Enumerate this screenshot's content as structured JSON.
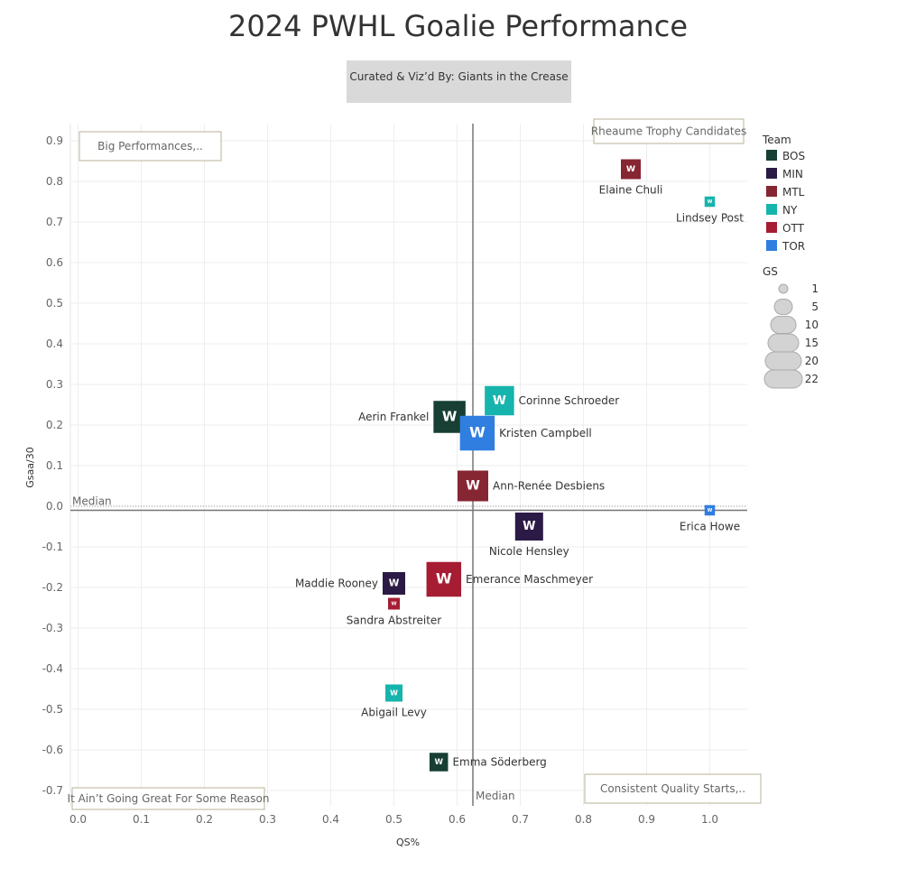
{
  "title": "2024 PWHL Goalie Performance",
  "credit": "Curated & Viz’d By: Giants in the Crease",
  "colors": {
    "BOS": "#173f33",
    "MIN": "#2b1a45",
    "MTL": "#862633",
    "NY": "#16b4ad",
    "OTT": "#a61d33",
    "TOR": "#2f7ee0"
  },
  "chart_data": {
    "type": "scatter",
    "xlabel": "QS%",
    "ylabel": "Gsaa/30",
    "xlim": [
      -0.01,
      1.06
    ],
    "ylim": [
      -0.74,
      0.94
    ],
    "x_ticks": [
      "0.0",
      "0.1",
      "0.2",
      "0.3",
      "0.4",
      "0.5",
      "0.6",
      "0.7",
      "0.8",
      "0.9",
      "1.0"
    ],
    "y_ticks": [
      "0.9",
      "0.8",
      "0.7",
      "0.6",
      "0.5",
      "0.4",
      "0.3",
      "0.2",
      "0.1",
      "0.0",
      "-0.1",
      "-0.2",
      "-0.3",
      "-0.4",
      "-0.5",
      "-0.6",
      "-0.7"
    ],
    "x_median": 0.625,
    "y_median": -0.01,
    "median_label": "Median",
    "grid": true,
    "points": [
      {
        "name": "Elaine Chuli",
        "team": "MTL",
        "x": 0.875,
        "y": 0.83,
        "gs": 8
      },
      {
        "name": "Lindsey Post",
        "team": "NY",
        "x": 1.0,
        "y": 0.75,
        "gs": 1
      },
      {
        "name": "Corinne Schroeder",
        "team": "NY",
        "x": 0.667,
        "y": 0.26,
        "gs": 15
      },
      {
        "name": "Aerin Frankel",
        "team": "BOS",
        "x": 0.588,
        "y": 0.22,
        "gs": 17
      },
      {
        "name": "Kristen Campbell",
        "team": "TOR",
        "x": 0.632,
        "y": 0.18,
        "gs": 19
      },
      {
        "name": "Ann-Renée Desbiens",
        "team": "MTL",
        "x": 0.625,
        "y": 0.05,
        "gs": 16
      },
      {
        "name": "Erica Howe",
        "team": "TOR",
        "x": 1.0,
        "y": -0.01,
        "gs": 1
      },
      {
        "name": "Nicole Hensley",
        "team": "MIN",
        "x": 0.714,
        "y": -0.05,
        "gs": 14
      },
      {
        "name": "Maddie Rooney",
        "team": "MIN",
        "x": 0.5,
        "y": -0.19,
        "gs": 10
      },
      {
        "name": "Emerance Maschmeyer",
        "team": "OTT",
        "x": 0.579,
        "y": -0.18,
        "gs": 19
      },
      {
        "name": "Sandra Abstreiter",
        "team": "OTT",
        "x": 0.5,
        "y": -0.24,
        "gs": 2
      },
      {
        "name": "Abigail Levy",
        "team": "NY",
        "x": 0.5,
        "y": -0.46,
        "gs": 6
      },
      {
        "name": "Emma Söderberg",
        "team": "BOS",
        "x": 0.571,
        "y": -0.63,
        "gs": 7
      }
    ],
    "quadrant_labels": {
      "top_left": "Big Performances,..",
      "top_right": "Rheaume Trophy Candidates",
      "bottom_left": "It Ain’t Going Great For Some Reason",
      "bottom_right": "Consistent Quality Starts,.."
    },
    "legend": {
      "team_title": "Team",
      "teams": [
        "BOS",
        "MIN",
        "MTL",
        "NY",
        "OTT",
        "TOR"
      ],
      "size_title": "GS",
      "sizes": [
        "1",
        "5",
        "10",
        "15",
        "20",
        "22"
      ],
      "placement": "right"
    }
  }
}
